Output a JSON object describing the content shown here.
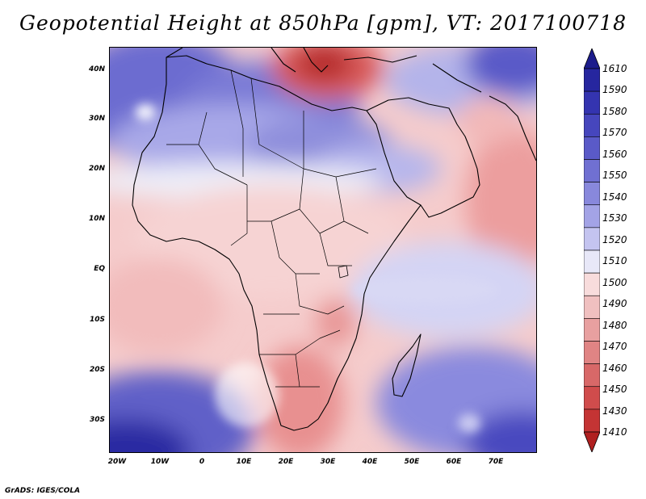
{
  "title": "Geopotential Height at 850hPa [gpm], VT: 2017100718",
  "credit": "GrADS: IGES/COLA",
  "map": {
    "lat_labels": [
      "40N",
      "30N",
      "20N",
      "10N",
      "EQ",
      "10S",
      "20S",
      "30S"
    ],
    "lon_labels": [
      "20W",
      "10W",
      "0",
      "10E",
      "20E",
      "30E",
      "40E",
      "50E",
      "60E",
      "70E"
    ]
  },
  "colorbar": {
    "levels": [
      "1610",
      "1590",
      "1580",
      "1570",
      "1560",
      "1550",
      "1540",
      "1530",
      "1520",
      "1510",
      "1500",
      "1490",
      "1480",
      "1470",
      "1460",
      "1450",
      "1430",
      "1410"
    ],
    "colors": [
      "#1c1c8c",
      "#26269f",
      "#3434b0",
      "#4646bd",
      "#5a5ac8",
      "#7070d2",
      "#8888dc",
      "#a3a3e6",
      "#c4c4f0",
      "#e8e8f8",
      "#f8dcdc",
      "#f0c0c0",
      "#e8a0a0",
      "#e08484",
      "#d86868",
      "#d04c4c",
      "#c43434",
      "#b02020"
    ]
  }
}
